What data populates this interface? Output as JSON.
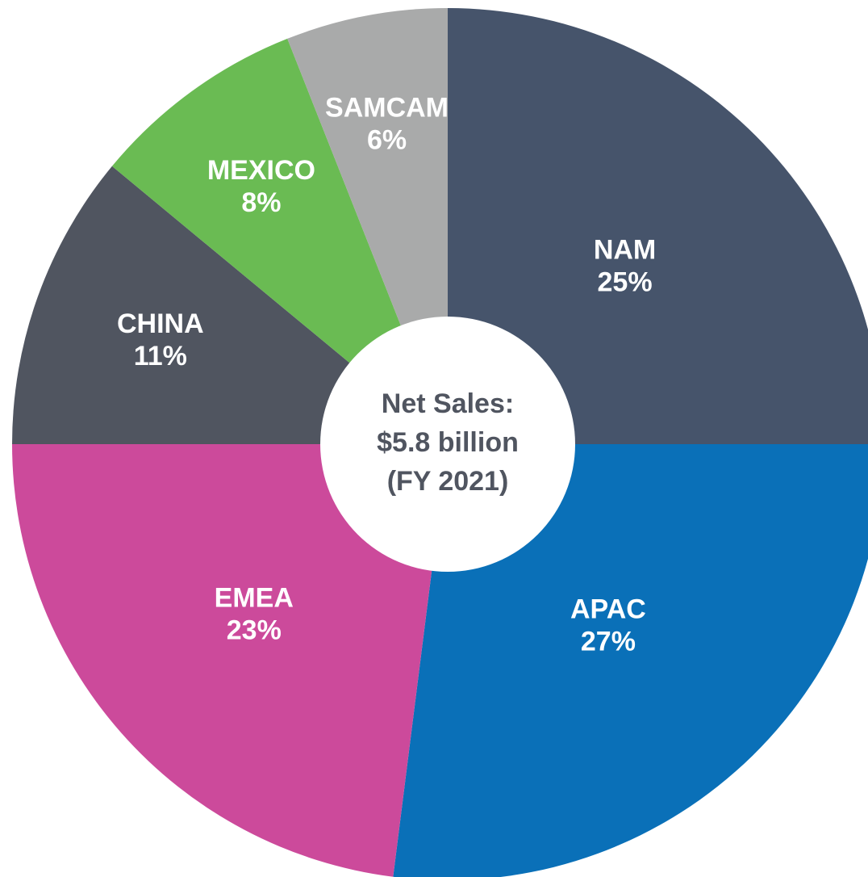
{
  "chart_data": {
    "type": "pie",
    "categories": [
      "NAM",
      "APAC",
      "EMEA",
      "CHINA",
      "MEXICO",
      "SAMCAM"
    ],
    "values": [
      25,
      27,
      23,
      11,
      8,
      6
    ],
    "value_labels": [
      "25%",
      "27%",
      "23%",
      "11%",
      "8%",
      "6%"
    ],
    "colors": [
      "#46546b",
      "#0a70b8",
      "#cc4a9b",
      "#505560",
      "#6abb53",
      "#a9aaaa"
    ],
    "center_text": [
      "Net Sales:",
      "$5.8 billion",
      "(FY 2021)"
    ]
  }
}
